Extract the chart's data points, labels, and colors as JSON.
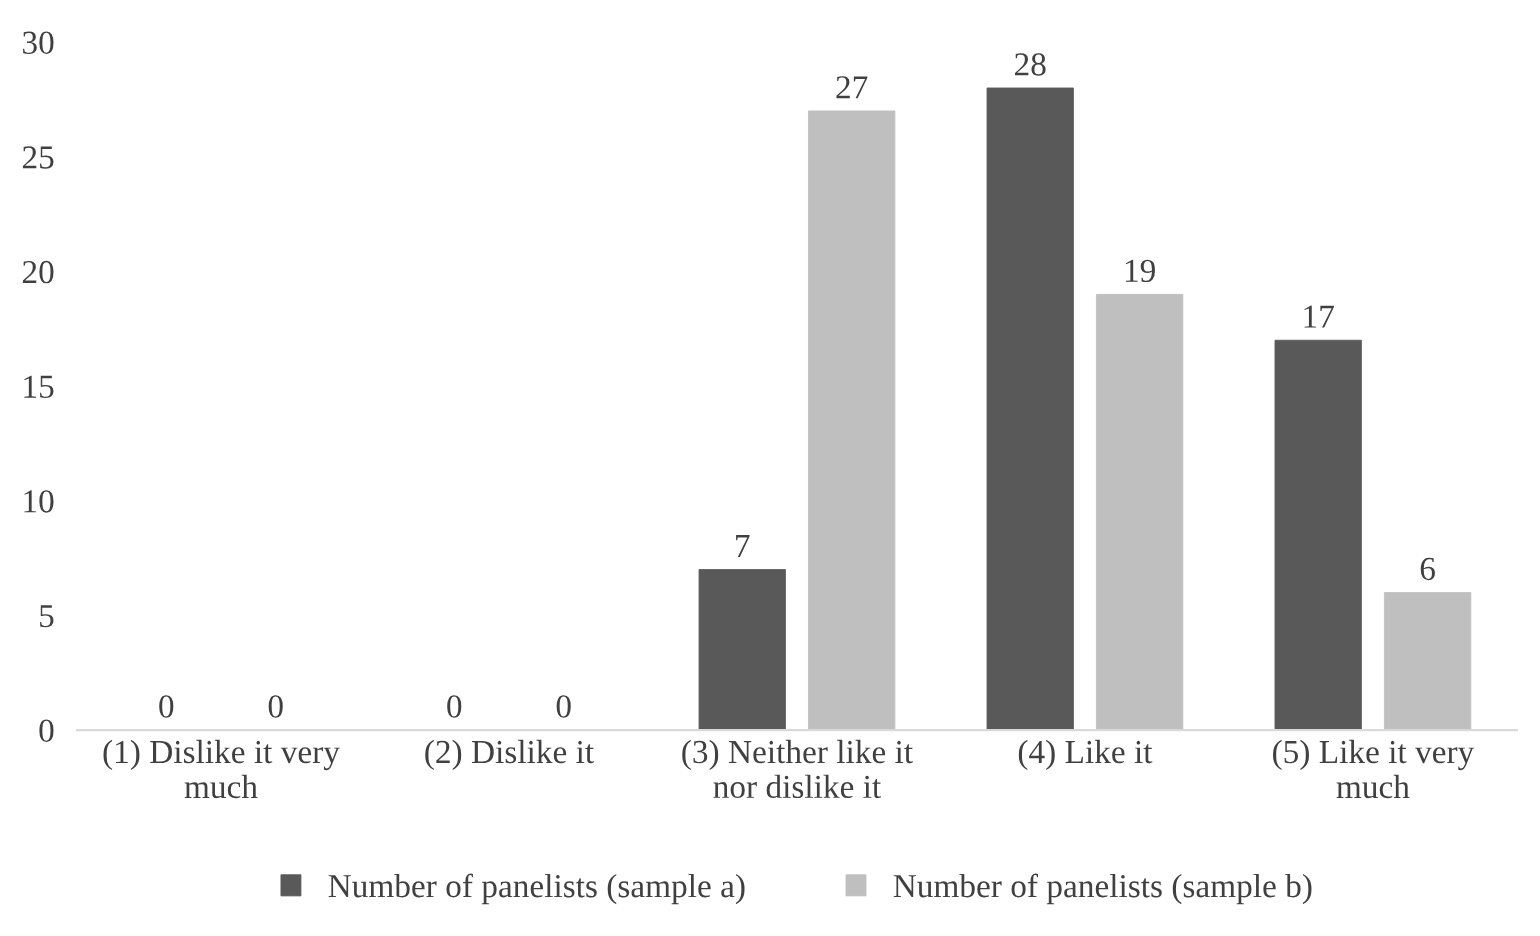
{
  "chart_data": {
    "type": "bar",
    "categories": [
      "(1) Dislike it very\nmuch",
      "(2) Dislike it",
      "(3) Neither like it\nnor dislike it",
      "(4) Like it",
      "(5) Like it very\nmuch"
    ],
    "series": [
      {
        "name": "Number of panelists (sample a)",
        "color": "#595959",
        "values": [
          0,
          0,
          7,
          28,
          17
        ]
      },
      {
        "name": "Number of panelists (sample b)",
        "color": "#bfbfbf",
        "values": [
          0,
          0,
          27,
          19,
          6
        ]
      }
    ],
    "ylim": [
      0,
      30
    ],
    "yticks": [
      0,
      5,
      10,
      15,
      20,
      25,
      30
    ],
    "grid": false,
    "legend": "bottom",
    "data_labels": true
  }
}
